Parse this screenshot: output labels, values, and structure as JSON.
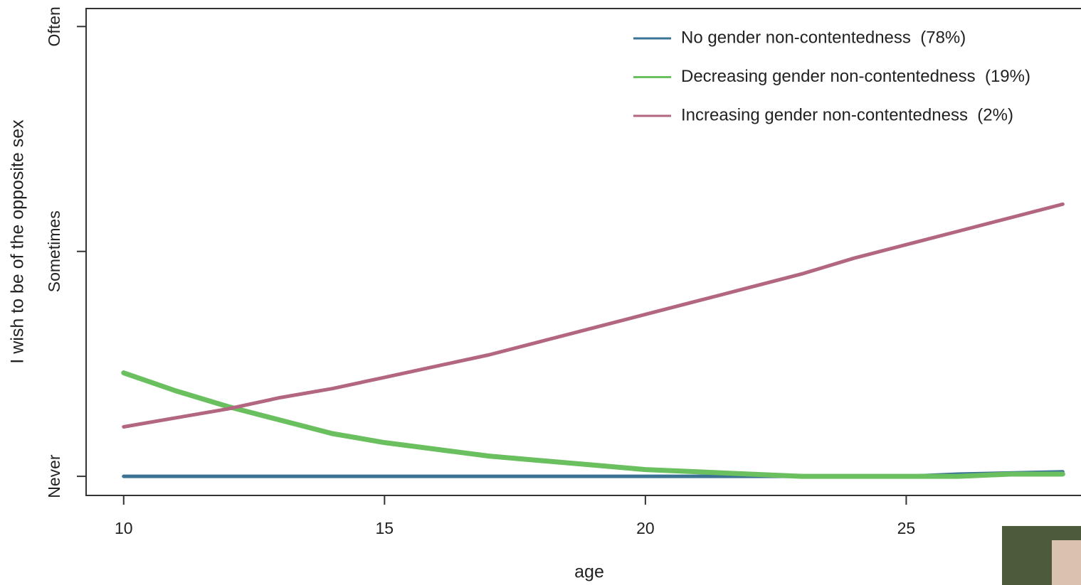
{
  "chart_data": {
    "type": "line",
    "x_label": "age",
    "y_label": "I wish to be of the opposite sex",
    "x": [
      10,
      11,
      12,
      13,
      14,
      15,
      16,
      17,
      18,
      19,
      20,
      21,
      22,
      23,
      24,
      25,
      26,
      27,
      28
    ],
    "series": [
      {
        "name": "No gender non-contentedness  (78%)",
        "color": "#3a7394",
        "values": [
          0,
          0,
          0,
          0,
          0,
          0,
          0,
          0,
          0,
          0,
          0,
          0,
          0,
          0,
          0,
          0,
          0.01,
          0.015,
          0.02
        ]
      },
      {
        "name": "Decreasing gender non-contentedness  (19%)",
        "color": "#6abf5e",
        "values": [
          0.46,
          0.38,
          0.31,
          0.25,
          0.19,
          0.15,
          0.12,
          0.09,
          0.07,
          0.05,
          0.03,
          0.02,
          0.01,
          0,
          0,
          0,
          0,
          0.01,
          0.01
        ]
      },
      {
        "name": "Increasing gender non-contentedness  (2%)",
        "color": "#b3667f",
        "values": [
          0.22,
          0.26,
          0.3,
          0.35,
          0.39,
          0.44,
          0.49,
          0.54,
          0.6,
          0.66,
          0.72,
          0.78,
          0.84,
          0.9,
          0.97,
          1.03,
          1.09,
          1.15,
          1.21
        ]
      }
    ],
    "xlim": [
      9.28,
      28.35
    ],
    "xticks": [
      10,
      15,
      20,
      25
    ],
    "ylim": [
      -0.085,
      2.08
    ],
    "yticks": [
      {
        "value": 0,
        "label": "Never"
      },
      {
        "value": 1,
        "label": "Sometimes"
      },
      {
        "value": 2,
        "label": "Often"
      }
    ],
    "legend": "top-right",
    "grid": false
  }
}
